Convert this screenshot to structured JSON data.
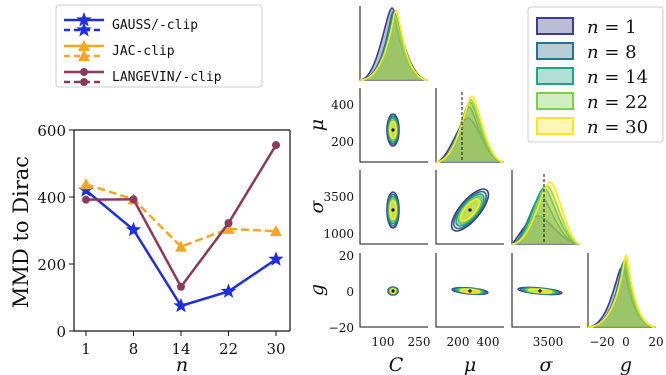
{
  "chart_data": [
    {
      "type": "line",
      "xlabel": "n",
      "ylabel": "MMD to Dirac",
      "categories": [
        "1",
        "8",
        "14",
        "22",
        "30"
      ],
      "ylim": [
        0,
        600
      ],
      "yticks": [
        "0",
        "200",
        "400",
        "600"
      ],
      "grid": false,
      "legend_position": "top-left",
      "series": [
        {
          "name": "GAUSS/-clip",
          "values": [
            420,
            302,
            75,
            118,
            214
          ],
          "color": "#1f2ee0",
          "marker": "star",
          "line": "solid"
        },
        {
          "name": "JAC-clip",
          "values": [
            438,
            393,
            252,
            305,
            298
          ],
          "color": "#f5a623",
          "marker": "triangle",
          "line": "dashed"
        },
        {
          "name": "LANGEVIN/-clip",
          "values": [
            392,
            393,
            132,
            322,
            555
          ],
          "color": "#8b3a5c",
          "marker": "circle",
          "line": "solid"
        }
      ]
    },
    {
      "type": "scatter",
      "description_type": "corner-plot",
      "parameters": [
        "C",
        "μ",
        "σ",
        "g"
      ],
      "x_tick_labels": {
        "C": [
          "100",
          "250"
        ],
        "mu": [
          "200",
          "400"
        ],
        "sigma": [
          "3500"
        ],
        "g": [
          "−20",
          "0",
          "20"
        ]
      },
      "y_tick_labels": {
        "mu": [
          "400",
          "200"
        ],
        "sigma": [
          "3500",
          "1000"
        ],
        "g": [
          "20",
          "0",
          "−20"
        ]
      },
      "legend": [
        {
          "label": "n = 1",
          "n": "1",
          "color": "#3b3f8c"
        },
        {
          "label": "n = 8",
          "n": "8",
          "color": "#2c728e"
        },
        {
          "label": "n = 14",
          "n": "14",
          "color": "#20a486"
        },
        {
          "label": "n = 22",
          "n": "22",
          "color": "#75d054"
        },
        {
          "label": "n = 30",
          "n": "30",
          "color": "#fde725"
        }
      ]
    }
  ],
  "text": {
    "n_eq": "n",
    "eq": "="
  }
}
